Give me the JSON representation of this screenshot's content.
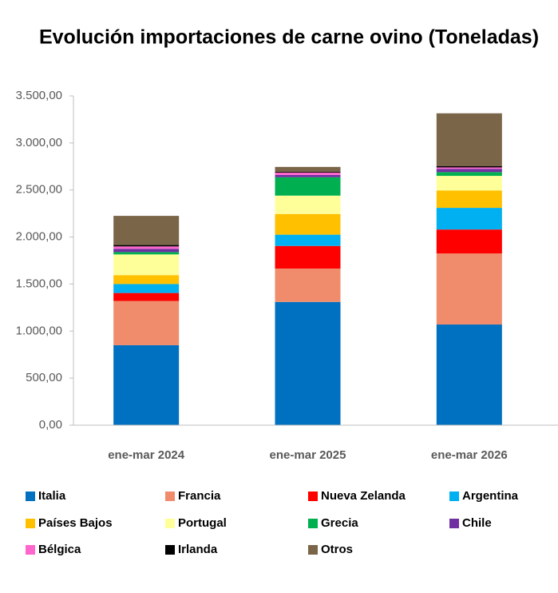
{
  "chart_data": {
    "type": "stacked_bar",
    "title": "Evolución importaciones de carne ovino (Toneladas)",
    "categories": [
      "ene-mar 2024",
      "ene-mar 2025",
      "ene-mar 2026"
    ],
    "series": [
      {
        "name": "Italia",
        "color": "#0070c0",
        "values": [
          850,
          1310,
          1070
        ]
      },
      {
        "name": "Francia",
        "color": "#f08c6c",
        "values": [
          470,
          355,
          755
        ]
      },
      {
        "name": "Nueva Zelanda",
        "color": "#ff0000",
        "values": [
          85,
          240,
          255
        ]
      },
      {
        "name": "Argentina",
        "color": "#00b0f0",
        "values": [
          95,
          120,
          230
        ]
      },
      {
        "name": "Países Bajos",
        "color": "#ffc000",
        "values": [
          95,
          220,
          185
        ]
      },
      {
        "name": "Portugal",
        "color": "#ffff99",
        "values": [
          220,
          195,
          155
        ]
      },
      {
        "name": "Grecia",
        "color": "#00b050",
        "values": [
          25,
          195,
          40
        ]
      },
      {
        "name": "Chile",
        "color": "#7030a0",
        "values": [
          35,
          25,
          35
        ]
      },
      {
        "name": "Bélgica",
        "color": "#ff66cc",
        "values": [
          25,
          25,
          15
        ]
      },
      {
        "name": "Irlanda",
        "color": "#000000",
        "values": [
          15,
          10,
          15
        ]
      },
      {
        "name": "Otros",
        "color": "#7a6548",
        "values": [
          310,
          50,
          560
        ]
      }
    ],
    "ylim": [
      0,
      3500
    ],
    "yticks": [
      {
        "value": 0,
        "label": "0,00"
      },
      {
        "value": 500,
        "label": "500,00"
      },
      {
        "value": 1000,
        "label": "1.000,00"
      },
      {
        "value": 1500,
        "label": "1.500,00"
      },
      {
        "value": 2000,
        "label": "2.000,00"
      },
      {
        "value": 2500,
        "label": "2.500,00"
      },
      {
        "value": 3000,
        "label": "3.000,00"
      },
      {
        "value": 3500,
        "label": "3.500,00"
      }
    ],
    "grid": false,
    "legend": "bottom"
  }
}
